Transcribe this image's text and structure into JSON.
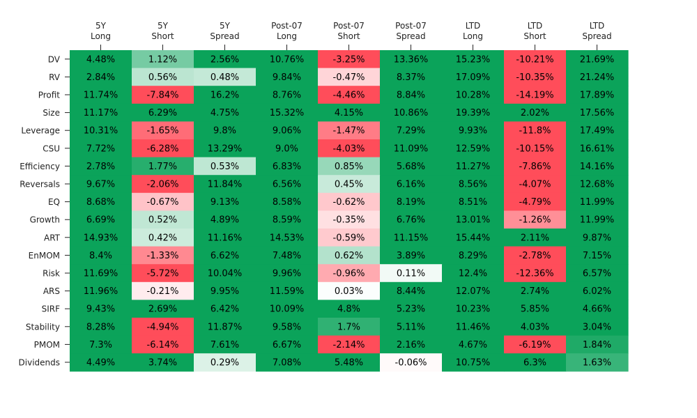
{
  "chart_data": {
    "type": "heatmap",
    "title": "",
    "xlabel": "",
    "ylabel": "",
    "columns": [
      [
        "5Y",
        "Long"
      ],
      [
        "5Y",
        "Short"
      ],
      [
        "5Y",
        "Spread"
      ],
      [
        "Post-07",
        "Long"
      ],
      [
        "Post-07",
        "Short"
      ],
      [
        "Post-07",
        "Spread"
      ],
      [
        "LTD",
        "Long"
      ],
      [
        "LTD",
        "Short"
      ],
      [
        "LTD",
        "Spread"
      ]
    ],
    "rows": [
      "DV",
      "RV",
      "Profit",
      "Size",
      "Leverage",
      "CSU",
      "Efficiency",
      "Reversals",
      "EQ",
      "Growth",
      "ART",
      "EnMOM",
      "Risk",
      "ARS",
      "SIRF",
      "Stability",
      "PMOM",
      "Dividends"
    ],
    "values": [
      [
        4.48,
        1.12,
        2.56,
        10.76,
        -3.25,
        13.36,
        15.23,
        -10.21,
        21.69
      ],
      [
        2.84,
        0.56,
        0.48,
        9.84,
        -0.47,
        8.37,
        17.09,
        -10.35,
        21.24
      ],
      [
        11.74,
        -7.84,
        16.2,
        8.76,
        -4.46,
        8.84,
        10.28,
        -14.19,
        17.89
      ],
      [
        11.17,
        6.29,
        4.75,
        15.32,
        4.15,
        10.86,
        19.39,
        2.02,
        17.56
      ],
      [
        10.31,
        -1.65,
        9.8,
        9.06,
        -1.47,
        7.29,
        9.93,
        -11.8,
        17.49
      ],
      [
        7.72,
        -6.28,
        13.29,
        9.0,
        -4.03,
        11.09,
        12.59,
        -10.15,
        16.61
      ],
      [
        2.78,
        1.77,
        0.53,
        6.83,
        0.85,
        5.68,
        11.27,
        -7.86,
        14.16
      ],
      [
        9.67,
        -2.06,
        11.84,
        6.56,
        0.45,
        6.16,
        8.56,
        -4.07,
        12.68
      ],
      [
        8.68,
        -0.67,
        9.13,
        8.58,
        -0.62,
        8.19,
        8.51,
        -4.79,
        11.99
      ],
      [
        6.69,
        0.52,
        4.89,
        8.59,
        -0.35,
        6.76,
        13.01,
        -1.26,
        11.99
      ],
      [
        14.93,
        0.42,
        11.16,
        14.53,
        -0.59,
        11.15,
        15.44,
        2.11,
        9.87
      ],
      [
        8.4,
        -1.33,
        6.62,
        7.48,
        0.62,
        3.89,
        8.29,
        -2.78,
        7.15
      ],
      [
        11.69,
        -5.72,
        10.04,
        9.96,
        -0.96,
        0.11,
        12.4,
        -12.36,
        6.57
      ],
      [
        11.96,
        -0.21,
        9.95,
        11.59,
        0.03,
        8.44,
        12.07,
        2.74,
        6.02
      ],
      [
        9.43,
        2.69,
        6.42,
        10.09,
        4.8,
        5.23,
        10.23,
        5.85,
        4.66
      ],
      [
        8.28,
        -4.94,
        11.87,
        9.58,
        1.7,
        5.11,
        11.46,
        4.03,
        3.04
      ],
      [
        7.3,
        -6.14,
        7.61,
        6.67,
        -2.14,
        2.16,
        4.67,
        -6.19,
        1.84
      ],
      [
        4.49,
        3.74,
        0.29,
        7.08,
        5.48,
        -0.06,
        10.75,
        6.3,
        1.63
      ]
    ],
    "value_labels": [
      [
        "4.48%",
        "1.12%",
        "2.56%",
        "10.76%",
        "-3.25%",
        "13.36%",
        "15.23%",
        "-10.21%",
        "21.69%"
      ],
      [
        "2.84%",
        "0.56%",
        "0.48%",
        "9.84%",
        "-0.47%",
        "8.37%",
        "17.09%",
        "-10.35%",
        "21.24%"
      ],
      [
        "11.74%",
        "-7.84%",
        "16.2%",
        "8.76%",
        "-4.46%",
        "8.84%",
        "10.28%",
        "-14.19%",
        "17.89%"
      ],
      [
        "11.17%",
        "6.29%",
        "4.75%",
        "15.32%",
        "4.15%",
        "10.86%",
        "19.39%",
        "2.02%",
        "17.56%"
      ],
      [
        "10.31%",
        "-1.65%",
        "9.8%",
        "9.06%",
        "-1.47%",
        "7.29%",
        "9.93%",
        "-11.8%",
        "17.49%"
      ],
      [
        "7.72%",
        "-6.28%",
        "13.29%",
        "9.0%",
        "-4.03%",
        "11.09%",
        "12.59%",
        "-10.15%",
        "16.61%"
      ],
      [
        "2.78%",
        "1.77%",
        "0.53%",
        "6.83%",
        "0.85%",
        "5.68%",
        "11.27%",
        "-7.86%",
        "14.16%"
      ],
      [
        "9.67%",
        "-2.06%",
        "11.84%",
        "6.56%",
        "0.45%",
        "6.16%",
        "8.56%",
        "-4.07%",
        "12.68%"
      ],
      [
        "8.68%",
        "-0.67%",
        "9.13%",
        "8.58%",
        "-0.62%",
        "8.19%",
        "8.51%",
        "-4.79%",
        "11.99%"
      ],
      [
        "6.69%",
        "0.52%",
        "4.89%",
        "8.59%",
        "-0.35%",
        "6.76%",
        "13.01%",
        "-1.26%",
        "11.99%"
      ],
      [
        "14.93%",
        "0.42%",
        "11.16%",
        "14.53%",
        "-0.59%",
        "11.15%",
        "15.44%",
        "2.11%",
        "9.87%"
      ],
      [
        "8.4%",
        "-1.33%",
        "6.62%",
        "7.48%",
        "0.62%",
        "3.89%",
        "8.29%",
        "-2.78%",
        "7.15%"
      ],
      [
        "11.69%",
        "-5.72%",
        "10.04%",
        "9.96%",
        "-0.96%",
        "0.11%",
        "12.4%",
        "-12.36%",
        "6.57%"
      ],
      [
        "11.96%",
        "-0.21%",
        "9.95%",
        "11.59%",
        "0.03%",
        "8.44%",
        "12.07%",
        "2.74%",
        "6.02%"
      ],
      [
        "9.43%",
        "2.69%",
        "6.42%",
        "10.09%",
        "4.8%",
        "5.23%",
        "10.23%",
        "5.85%",
        "4.66%"
      ],
      [
        "8.28%",
        "-4.94%",
        "11.87%",
        "9.58%",
        "1.7%",
        "5.11%",
        "11.46%",
        "4.03%",
        "3.04%"
      ],
      [
        "7.3%",
        "-6.14%",
        "7.61%",
        "6.67%",
        "-2.14%",
        "2.16%",
        "4.67%",
        "-6.19%",
        "1.84%"
      ],
      [
        "4.49%",
        "3.74%",
        "0.29%",
        "7.08%",
        "5.48%",
        "-0.06%",
        "10.75%",
        "6.3%",
        "1.63%"
      ]
    ],
    "color_scale": {
      "negative": "#ff4d5a",
      "zero": "#ffffff",
      "positive": "#0ba35a",
      "clip": 2
    },
    "x_tick_position": "top",
    "grid": false,
    "legend": "none"
  }
}
